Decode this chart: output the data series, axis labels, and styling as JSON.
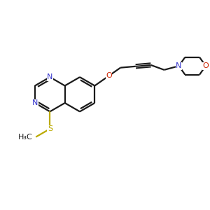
{
  "background_color": "#ffffff",
  "bond_color": "#1a1a1a",
  "N_color": "#3333cc",
  "O_color": "#cc2200",
  "S_color": "#bbaa00",
  "line_width": 1.6,
  "figsize": [
    3.0,
    3.0
  ],
  "dpi": 100,
  "xlim": [
    0,
    10
  ],
  "ylim": [
    0,
    10
  ]
}
